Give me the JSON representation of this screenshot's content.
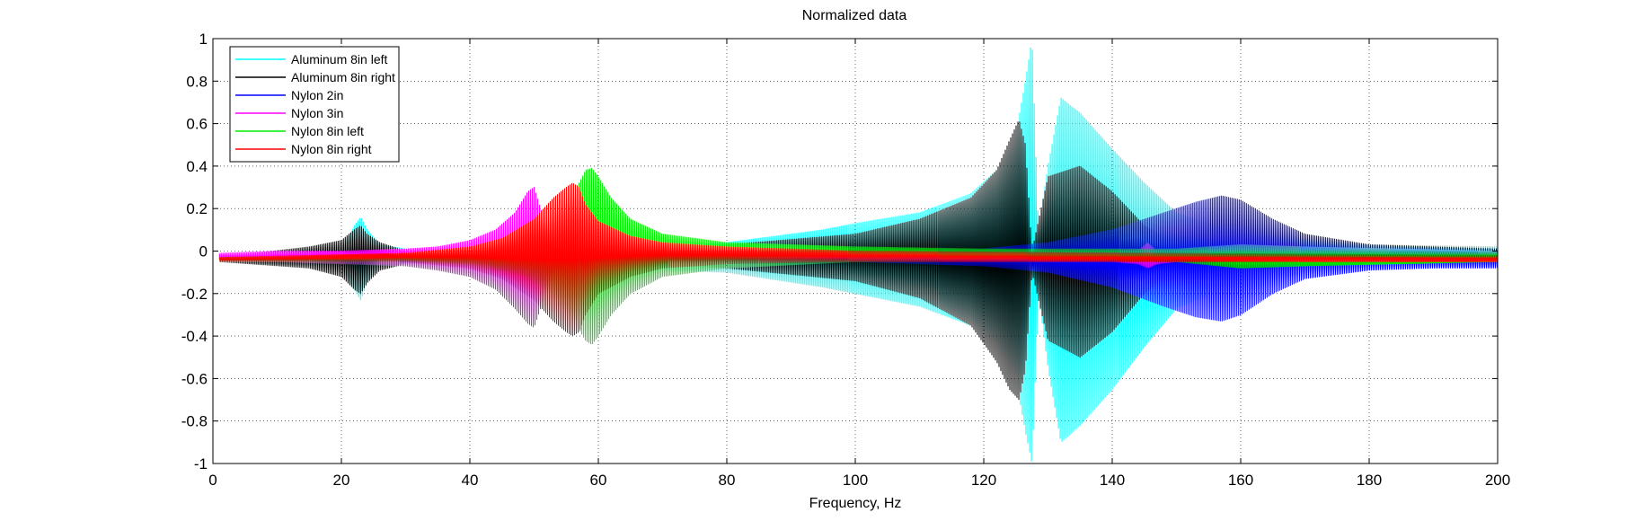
{
  "chart_data": {
    "type": "line",
    "title": "Normalized data",
    "xlabel": "Frequency, Hz",
    "ylabel": "",
    "xlim": [
      0,
      200
    ],
    "ylim": [
      -1,
      1
    ],
    "xticks": [
      0,
      20,
      40,
      60,
      80,
      100,
      120,
      140,
      160,
      180,
      200
    ],
    "yticks": [
      -1,
      -0.8,
      -0.6,
      -0.4,
      -0.2,
      0,
      0.2,
      0.4,
      0.6,
      0.8,
      1
    ],
    "xtick_labels": [
      "0",
      "20",
      "40",
      "60",
      "80",
      "100",
      "120",
      "140",
      "160",
      "180",
      "200"
    ],
    "ytick_labels": [
      "-1",
      "-0.8",
      "-0.6",
      "-0.4",
      "-0.2",
      "0",
      "0.2",
      "0.4",
      "0.6",
      "0.8",
      "1"
    ],
    "grid": true,
    "legend_position": "top-left",
    "series": [
      {
        "name": "Aluminum 8in left",
        "color": "#00ffff",
        "envelope": {
          "x": [
            1,
            20,
            22,
            23,
            24,
            26,
            30,
            40,
            60,
            80,
            95,
            100,
            110,
            118,
            122,
            125,
            126.5,
            127.5,
            128.5,
            130,
            132,
            135,
            140,
            145,
            150,
            160,
            180,
            200
          ],
          "upper": [
            -0.02,
            0.0,
            0.12,
            0.16,
            0.1,
            0.03,
            0.01,
            0.01,
            0.02,
            0.04,
            0.1,
            0.13,
            0.18,
            0.27,
            0.38,
            0.55,
            0.8,
            1.0,
            0.1,
            0.4,
            0.72,
            0.65,
            0.48,
            0.32,
            0.18,
            0.08,
            0.03,
            0.02
          ],
          "lower": [
            -0.05,
            -0.07,
            -0.18,
            -0.23,
            -0.15,
            -0.07,
            -0.06,
            -0.06,
            -0.08,
            -0.1,
            -0.17,
            -0.2,
            -0.26,
            -0.35,
            -0.45,
            -0.6,
            -0.85,
            -1.0,
            -0.2,
            -0.55,
            -0.9,
            -0.82,
            -0.65,
            -0.45,
            -0.27,
            -0.14,
            -0.08,
            -0.07
          ]
        }
      },
      {
        "name": "Aluminum 8in right",
        "color": "#000000",
        "envelope": {
          "x": [
            1,
            15,
            20,
            22,
            23,
            24,
            26,
            30,
            40,
            60,
            80,
            100,
            110,
            118,
            122,
            124,
            125.5,
            126.5,
            127.5,
            130,
            135,
            140,
            145,
            150,
            160,
            200
          ],
          "upper": [
            -0.03,
            0.02,
            0.05,
            0.1,
            0.12,
            0.08,
            0.04,
            0.0,
            -0.01,
            0.0,
            0.03,
            0.08,
            0.15,
            0.25,
            0.38,
            0.52,
            0.62,
            0.5,
            0.0,
            0.35,
            0.4,
            0.28,
            0.12,
            0.03,
            0.0,
            0.0
          ],
          "lower": [
            -0.05,
            -0.08,
            -0.12,
            -0.18,
            -0.2,
            -0.15,
            -0.09,
            -0.06,
            -0.05,
            -0.05,
            -0.08,
            -0.14,
            -0.22,
            -0.35,
            -0.52,
            -0.65,
            -0.7,
            -0.55,
            -0.1,
            -0.42,
            -0.5,
            -0.38,
            -0.2,
            -0.08,
            -0.05,
            -0.05
          ]
        }
      },
      {
        "name": "Nylon 2in",
        "color": "#0000ff",
        "envelope": {
          "x": [
            1,
            80,
            100,
            120,
            130,
            140,
            148,
            153,
            157,
            160,
            165,
            170,
            180,
            190,
            200
          ],
          "upper": [
            -0.02,
            -0.01,
            0.0,
            0.01,
            0.04,
            0.1,
            0.18,
            0.23,
            0.26,
            0.24,
            0.15,
            0.08,
            0.03,
            0.02,
            0.01
          ],
          "lower": [
            -0.04,
            -0.04,
            -0.05,
            -0.07,
            -0.1,
            -0.17,
            -0.26,
            -0.31,
            -0.33,
            -0.3,
            -0.2,
            -0.13,
            -0.09,
            -0.08,
            -0.08
          ]
        }
      },
      {
        "name": "Nylon 3in",
        "color": "#ff00ff",
        "envelope": {
          "x": [
            1,
            10,
            20,
            30,
            35,
            40,
            44,
            47,
            49,
            50,
            51,
            53,
            55,
            60,
            70,
            100,
            140,
            144,
            145.5,
            147,
            150,
            200
          ],
          "upper": [
            -0.01,
            0.0,
            0.0,
            0.01,
            0.02,
            0.05,
            0.1,
            0.18,
            0.28,
            0.3,
            0.2,
            0.05,
            0.03,
            0.01,
            0.0,
            -0.01,
            -0.01,
            0.0,
            0.04,
            0.0,
            -0.01,
            -0.01
          ],
          "lower": [
            -0.05,
            -0.05,
            -0.06,
            -0.07,
            -0.09,
            -0.12,
            -0.18,
            -0.27,
            -0.34,
            -0.36,
            -0.27,
            -0.12,
            -0.08,
            -0.06,
            -0.05,
            -0.05,
            -0.05,
            -0.06,
            -0.08,
            -0.06,
            -0.05,
            -0.05
          ]
        }
      },
      {
        "name": "Nylon 8in left",
        "color": "#00ee00",
        "envelope": {
          "x": [
            1,
            30,
            40,
            48,
            52,
            55,
            57,
            58,
            59,
            60,
            62,
            65,
            70,
            80,
            100,
            120,
            150,
            160,
            170,
            200
          ],
          "upper": [
            -0.03,
            -0.02,
            0.0,
            0.06,
            0.14,
            0.24,
            0.32,
            0.38,
            0.39,
            0.35,
            0.25,
            0.15,
            0.08,
            0.04,
            0.02,
            0.01,
            0.01,
            0.03,
            0.02,
            0.0
          ],
          "lower": [
            -0.05,
            -0.05,
            -0.07,
            -0.12,
            -0.2,
            -0.3,
            -0.37,
            -0.42,
            -0.44,
            -0.4,
            -0.3,
            -0.2,
            -0.12,
            -0.08,
            -0.05,
            -0.04,
            -0.05,
            -0.08,
            -0.07,
            -0.05
          ]
        }
      },
      {
        "name": "Nylon 8in right",
        "color": "#ff0000",
        "envelope": {
          "x": [
            1,
            30,
            40,
            45,
            50,
            53,
            55,
            56,
            57,
            58,
            60,
            65,
            70,
            80,
            100,
            150,
            200
          ],
          "upper": [
            -0.03,
            -0.01,
            0.02,
            0.06,
            0.15,
            0.25,
            0.3,
            0.32,
            0.3,
            0.22,
            0.14,
            0.07,
            0.04,
            0.02,
            0.0,
            -0.01,
            -0.02
          ],
          "lower": [
            -0.05,
            -0.05,
            -0.08,
            -0.13,
            -0.23,
            -0.33,
            -0.38,
            -0.4,
            -0.38,
            -0.3,
            -0.2,
            -0.12,
            -0.08,
            -0.06,
            -0.05,
            -0.05,
            -0.05
          ]
        }
      }
    ]
  }
}
